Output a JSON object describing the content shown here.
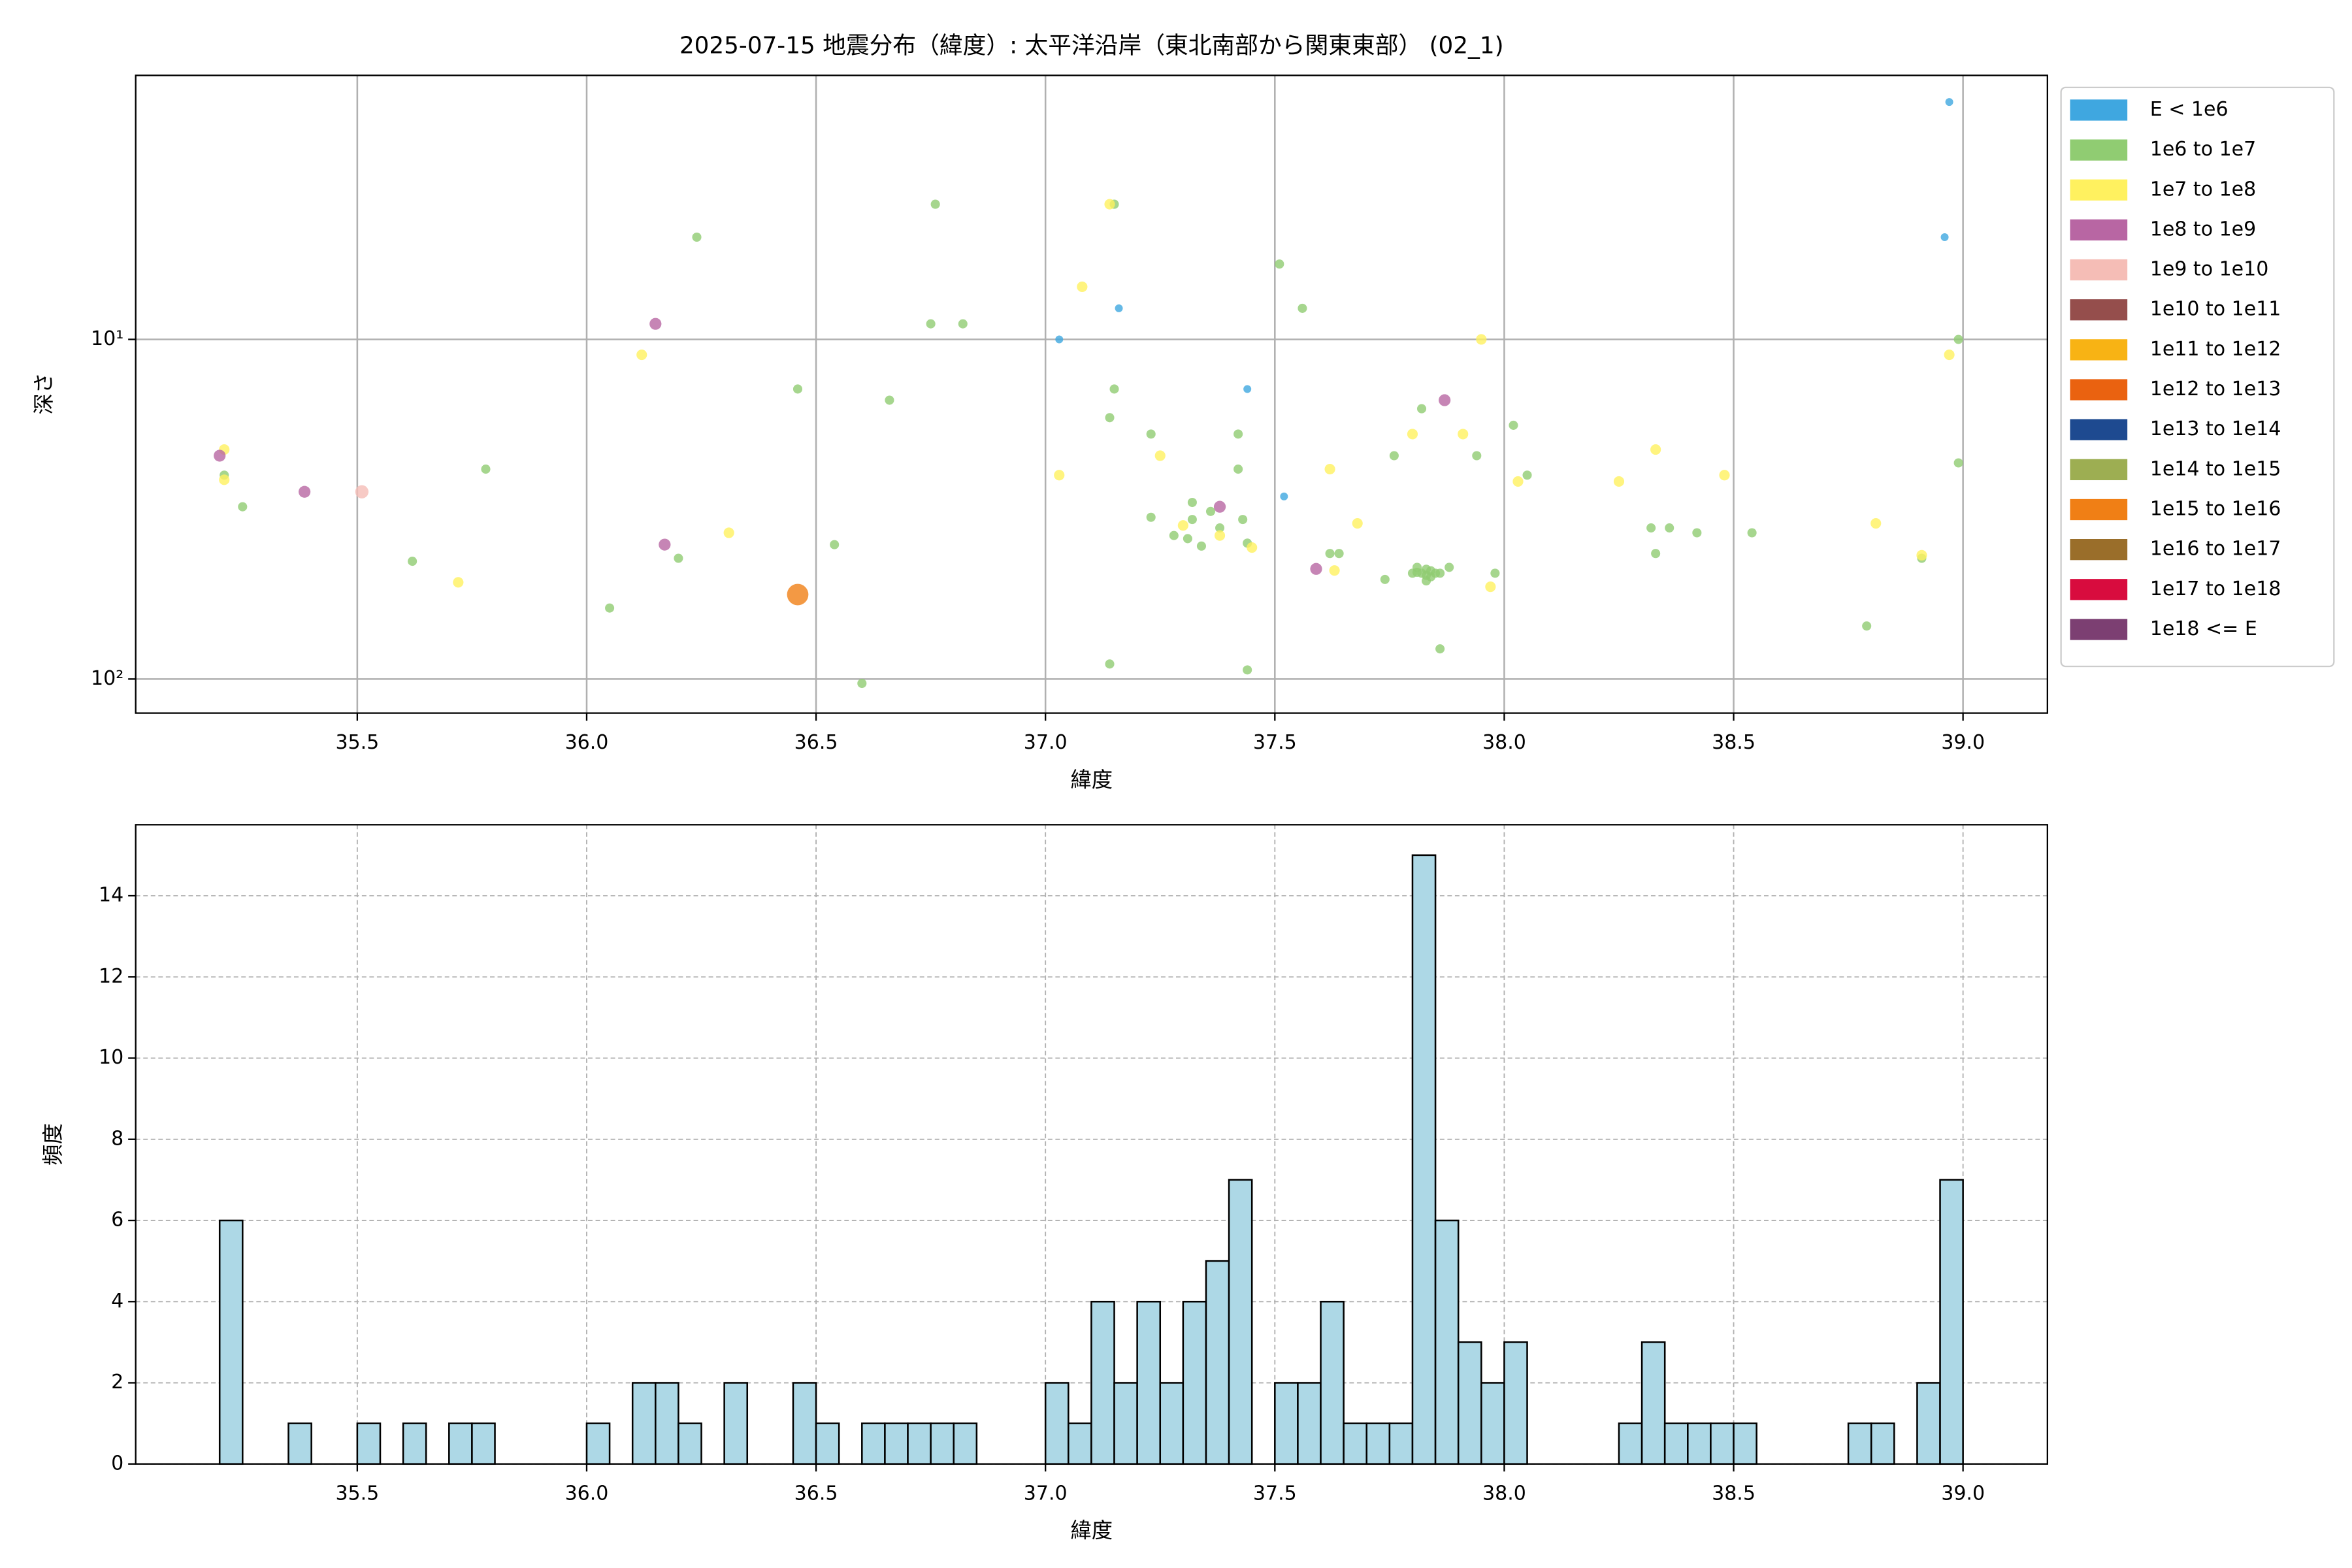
{
  "chart_data": [
    {
      "type": "scatter",
      "title": "2025-07-15 地震分布（緯度）: 太平洋沿岸（東北南部から関東東部） (02_1)",
      "xlabel": "緯度",
      "ylabel": "深さ",
      "xlim": [
        35.017,
        39.184
      ],
      "ylim": [
        126,
        1.67
      ],
      "yscale": "log",
      "xticks": [
        35.5,
        {
          "value": 36,
          "label": "36.0"
        },
        36.5,
        {
          "value": 37,
          "label": "37.0"
        },
        37.5,
        {
          "value": 38,
          "label": "38.0"
        },
        38.5,
        {
          "value": 39,
          "label": "39.0"
        }
      ],
      "yticks": [
        {
          "value": 10,
          "label": "10¹"
        },
        {
          "value": 100,
          "label": "10²"
        }
      ],
      "grid": true,
      "legend": "outside upper right",
      "series": [
        {
          "name": "E < 1e6",
          "color": "#3fa7e0",
          "x": [
            38.97,
            38.96,
            37.16,
            37.03,
            37.44,
            37.52
          ],
          "y": [
            2.0,
            5.0,
            8.1,
            10,
            14.0,
            29.0
          ]
        },
        {
          "name": "1e6 to 1e7",
          "color": "#90cc72",
          "x": [
            36.76,
            37.15,
            36.24,
            37.51,
            37.56,
            36.75,
            36.82,
            38.99,
            36.46,
            37.15,
            36.66,
            37.14,
            37.82,
            38.02,
            37.23,
            37.42,
            37.76,
            37.94,
            38.99,
            35.78,
            38.05,
            35.21,
            37.42,
            35.25,
            37.32,
            37.23,
            37.32,
            37.36,
            37.43,
            37.38,
            37.28,
            37.31,
            37.34,
            37.44,
            38.32,
            38.36,
            38.42,
            38.54,
            36.54,
            38.33,
            37.62,
            37.64,
            35.62,
            36.2,
            38.91,
            37.81,
            37.83,
            37.88,
            37.98,
            37.74,
            37.83,
            37.85,
            37.8,
            37.86,
            37.82,
            37.84,
            37.81,
            37.83,
            37.84,
            36.05,
            38.79,
            37.86,
            37.14,
            37.44,
            36.6
          ],
          "y": [
            4.0,
            4.0,
            5.0,
            6.0,
            8.1,
            9.0,
            9.0,
            10,
            14.0,
            14.0,
            15.1,
            17.0,
            16.0,
            17.9,
            19.0,
            19.0,
            22.0,
            22.0,
            23.1,
            24.1,
            25.1,
            25.1,
            24.1,
            31.1,
            30.2,
            33.4,
            33.9,
            32.1,
            33.9,
            35.9,
            37.8,
            38.6,
            40.6,
            39.8,
            35.9,
            35.9,
            37.1,
            37.1,
            40.2,
            42.7,
            42.7,
            42.7,
            45.0,
            44.1,
            44.1,
            46.9,
            47.5,
            46.9,
            48.8,
            50.9,
            51.4,
            48.8,
            48.8,
            48.8,
            48.8,
            50.0,
            48.5,
            49.5,
            48.0,
            61.8,
            69.8,
            81.5,
            90.3,
            94.0,
            103
          ]
        },
        {
          "name": "1e7 to 1e8",
          "color": "#fff15f",
          "x": [
            35.21,
            35.21,
            37.14,
            37.08,
            37.95,
            36.12,
            38.97,
            37.8,
            37.91,
            37.25,
            38.33,
            37.62,
            37.03,
            38.48,
            38.03,
            38.25,
            37.68,
            37.3,
            36.31,
            37.38,
            37.45,
            38.81,
            38.91,
            37.63,
            35.72,
            37.97
          ],
          "y": [
            21.1,
            25.9,
            4.0,
            7.0,
            10,
            11.1,
            11.1,
            19.0,
            19.0,
            22.0,
            21.1,
            24.1,
            25.1,
            25.1,
            26.2,
            26.2,
            34.8,
            35.3,
            37.1,
            37.8,
            41.0,
            34.8,
            43.2,
            47.9,
            51.9,
            53.5
          ]
        },
        {
          "name": "1e8 to 1e9",
          "color": "#b866a3",
          "x": [
            35.2,
            35.385,
            36.15,
            37.87,
            36.17,
            37.38,
            37.59
          ],
          "y": [
            22.0,
            28.1,
            9.0,
            15.1,
            40.2,
            31.1,
            47.4
          ]
        },
        {
          "name": "1e9 to 1e10",
          "color": "#f5bdb6",
          "x": [
            35.51
          ],
          "y": [
            28.1
          ]
        },
        {
          "name": "1e10 to 1e11",
          "color": "#954e4c",
          "x": [],
          "y": []
        },
        {
          "name": "1e11 to 1e12",
          "color": "#f8b314",
          "x": [],
          "y": []
        },
        {
          "name": "1e12 to 1e13",
          "color": "#ea6210",
          "x": [],
          "y": []
        },
        {
          "name": "1e13 to 1e14",
          "color": "#1e4a90",
          "x": [],
          "y": []
        },
        {
          "name": "1e14 to 1e15",
          "color": "#9dae52",
          "x": [],
          "y": []
        },
        {
          "name": "1e15 to 1e16",
          "color": "#f07f15",
          "x": [
            36.46
          ],
          "y": [
            56.4
          ]
        },
        {
          "name": "1e16 to 1e17",
          "color": "#9a6e2a",
          "x": [],
          "y": []
        },
        {
          "name": "1e17 to 1e18",
          "color": "#d80c3e",
          "x": [],
          "y": []
        },
        {
          "name": "1e18 <= E",
          "color": "#7c3f72",
          "x": [],
          "y": []
        }
      ]
    },
    {
      "type": "histogram",
      "xlabel": "緯度",
      "ylabel": "頻度",
      "xlim": [
        35.017,
        39.184
      ],
      "ylim": [
        0,
        15.75
      ],
      "xticks": [
        35.5,
        {
          "value": 36,
          "label": "36.0"
        },
        36.5,
        {
          "value": 37,
          "label": "37.0"
        },
        37.5,
        {
          "value": 38,
          "label": "38.0"
        },
        38.5,
        {
          "value": 39,
          "label": "39.0"
        }
      ],
      "yticks": [
        0,
        2,
        4,
        6,
        8,
        10,
        12,
        14
      ],
      "grid": true,
      "color": "#add8e6",
      "edgecolor": "#000000",
      "bins": [
        35.2,
        35.25,
        35.3,
        35.35,
        35.4,
        35.45,
        35.5,
        35.55,
        35.6,
        35.65,
        35.7,
        35.75,
        35.8,
        35.85,
        35.9,
        35.95,
        36,
        36.05,
        36.1,
        36.15,
        36.2,
        36.25,
        36.3,
        36.35,
        36.4,
        36.45,
        36.5,
        36.55,
        36.6,
        36.65,
        36.7,
        36.75,
        36.8,
        36.85,
        36.9,
        36.95,
        37,
        37.05,
        37.1,
        37.15,
        37.2,
        37.25,
        37.3,
        37.35,
        37.4,
        37.45,
        37.5,
        37.55,
        37.6,
        37.65,
        37.7,
        37.75,
        37.8,
        37.85,
        37.9,
        37.95,
        38,
        38.05,
        38.1,
        38.15,
        38.2,
        38.25,
        38.3,
        38.35,
        38.4,
        38.45,
        38.5,
        38.55,
        38.6,
        38.65,
        38.7,
        38.75,
        38.8,
        38.85,
        38.9,
        38.95,
        39
      ],
      "counts": [
        6,
        0,
        0,
        1,
        0,
        0,
        1,
        0,
        1,
        0,
        1,
        1,
        0,
        0,
        0,
        0,
        1,
        0,
        2,
        2,
        1,
        0,
        2,
        0,
        0,
        2,
        1,
        0,
        1,
        1,
        1,
        1,
        1,
        0,
        0,
        0,
        2,
        1,
        4,
        2,
        4,
        2,
        4,
        5,
        7,
        0,
        2,
        2,
        4,
        1,
        1,
        1,
        15,
        6,
        3,
        2,
        3,
        0,
        0,
        0,
        0,
        1,
        3,
        1,
        1,
        1,
        1,
        0,
        0,
        0,
        0,
        1,
        1,
        0,
        2,
        7
      ]
    }
  ]
}
